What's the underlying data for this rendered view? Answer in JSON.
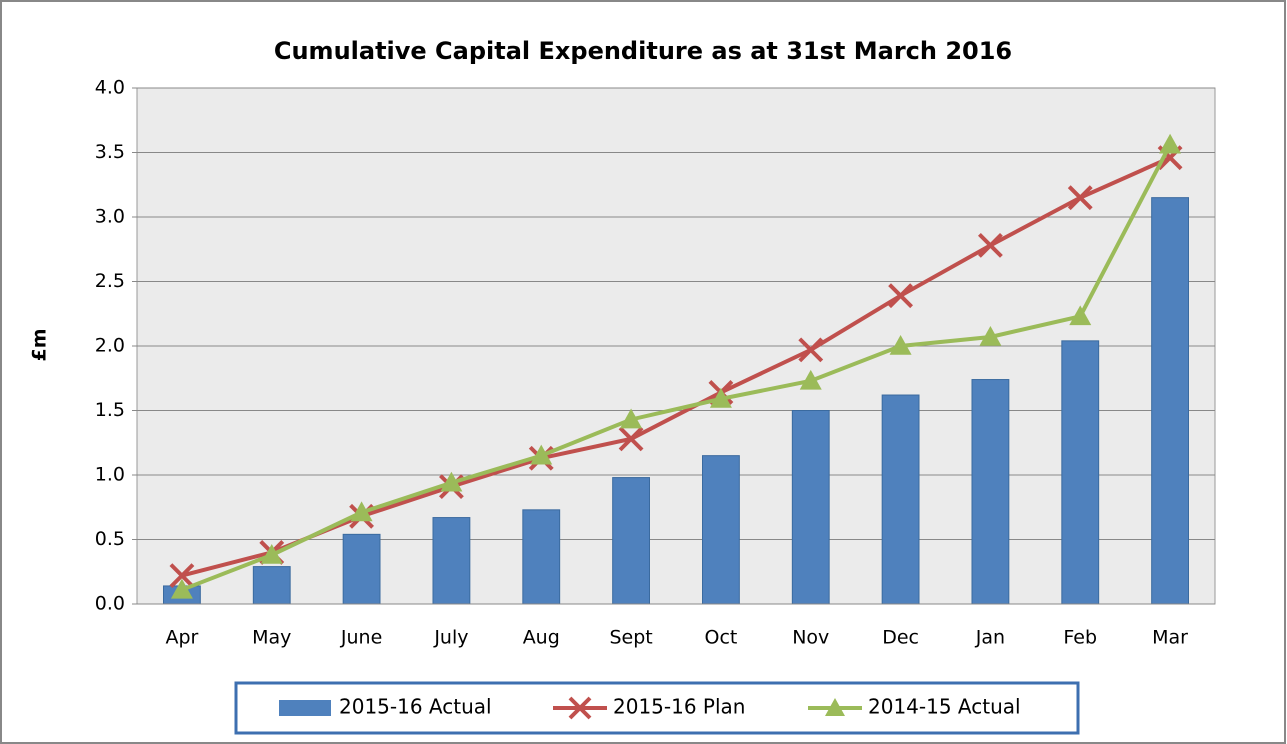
{
  "chart_data": {
    "type": "bar",
    "title": "Cumulative Capital Expenditure as at 31st March 2016",
    "y_label": "£m",
    "categories": [
      "Apr",
      "May",
      "June",
      "July",
      "Aug",
      "Sept",
      "Oct",
      "Nov",
      "Dec",
      "Jan",
      "Feb",
      "Mar"
    ],
    "series": [
      {
        "name": "2015-16 Actual",
        "type": "bar",
        "color": "#4f81bd",
        "values": [
          0.14,
          0.29,
          0.54,
          0.67,
          0.73,
          0.98,
          1.15,
          1.5,
          1.62,
          1.74,
          2.04,
          3.15
        ]
      },
      {
        "name": "2015-16 Plan",
        "type": "line",
        "marker": "x",
        "color": "#c0504d",
        "values": [
          0.22,
          0.4,
          0.68,
          0.91,
          1.13,
          1.28,
          1.64,
          1.97,
          2.39,
          2.78,
          3.15,
          3.46
        ]
      },
      {
        "name": "2014-15 Actual",
        "type": "line",
        "marker": "triangle",
        "color": "#9bbb59",
        "values": [
          0.11,
          0.38,
          0.71,
          0.94,
          1.15,
          1.43,
          1.59,
          1.73,
          2.0,
          2.07,
          2.23,
          3.56
        ]
      }
    ],
    "ylim": [
      0,
      4
    ],
    "yticks": [
      {
        "value": 0,
        "label": "0.0"
      },
      0.5,
      {
        "value": 1,
        "label": "1.0"
      },
      1.5,
      {
        "value": 2,
        "label": "2.0"
      },
      2.5,
      {
        "value": 3,
        "label": "3.0"
      },
      3.5,
      {
        "value": 4,
        "label": "4.0"
      }
    ],
    "grid": true,
    "legend": "bottom"
  }
}
